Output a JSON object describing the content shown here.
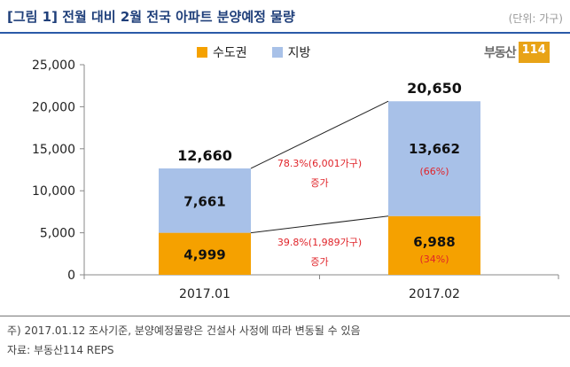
{
  "header": {
    "title": "[그림 1] 전월 대비 2월 전국 아파트 분양예정 물량",
    "unit": "(단위: 가구)",
    "logo_text": "부동산",
    "logo_badge": "114"
  },
  "chart_data": {
    "type": "bar",
    "stacked": true,
    "categories": [
      "2017.01",
      "2017.02"
    ],
    "series": [
      {
        "name": "수도권",
        "values": [
          4999,
          6988
        ],
        "value_labels": [
          "4,999",
          "6,988"
        ],
        "color": "#f5a100"
      },
      {
        "name": "지방",
        "values": [
          7661,
          13662
        ],
        "value_labels": [
          "7,661",
          "13,662"
        ],
        "color": "#a8c1e8"
      }
    ],
    "totals": [
      12660,
      20650
    ],
    "total_labels": [
      "12,660",
      "20,650"
    ],
    "ylim": [
      0,
      25000
    ],
    "yticks": [
      0,
      5000,
      10000,
      15000,
      20000,
      25000
    ],
    "ytick_labels": [
      "0",
      "5,000",
      "10,000",
      "15,000",
      "20,000",
      "25,000"
    ],
    "share_labels": {
      "수도권": [
        "",
        "(34%)"
      ],
      "지방": [
        "",
        "(66%)"
      ]
    },
    "annotations": [
      {
        "line1": "78.3%(6,001가구)",
        "line2": "증가"
      },
      {
        "line1": "39.8%(1,989가구)",
        "line2": "증가"
      }
    ],
    "legend_position": "top",
    "grid": false
  },
  "colors": {
    "accent_text": "#e0242a",
    "title": "#1f3f7a"
  },
  "footnotes": [
    "주) 2017.01.12 조사기준, 분양예정물량은 건설사 사정에 따라 변동될 수 있음",
    "자료: 부동산114 REPS"
  ]
}
